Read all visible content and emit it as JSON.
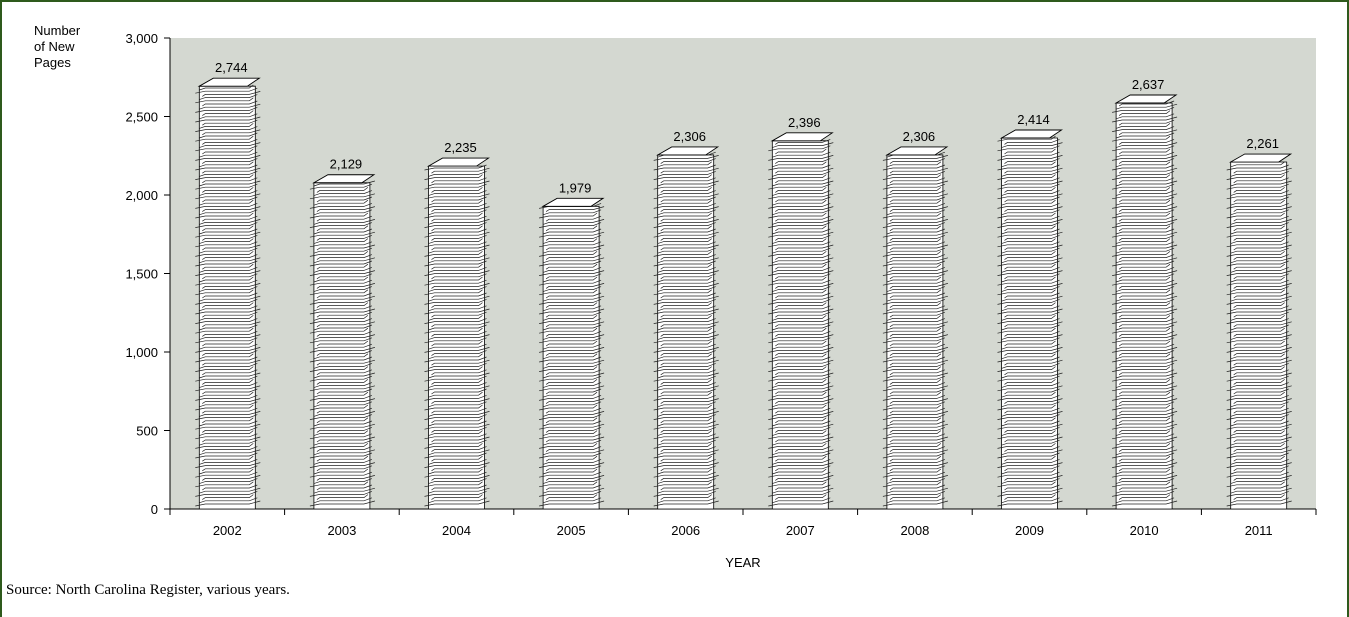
{
  "chart_data": {
    "type": "bar",
    "categories": [
      "2002",
      "2003",
      "2004",
      "2005",
      "2006",
      "2007",
      "2008",
      "2009",
      "2010",
      "2011"
    ],
    "values": [
      2744,
      2129,
      2235,
      1979,
      2306,
      2396,
      2306,
      2414,
      2637,
      2261
    ],
    "value_labels": [
      "2,744",
      "2,129",
      "2,235",
      "1,979",
      "2,306",
      "2,396",
      "2,306",
      "2,414",
      "2,637",
      "2,261"
    ],
    "ylabel": [
      "Number",
      "of New",
      "Pages"
    ],
    "xlabel": "YEAR",
    "ylim": [
      0,
      3000
    ],
    "yticks": [
      0,
      500,
      1000,
      1500,
      2000,
      2500,
      3000
    ],
    "ytick_labels": [
      "0",
      "500",
      "1,000",
      "1,500",
      "2,000",
      "2,500",
      "3,000"
    ],
    "bar_style": "stacked paper pages",
    "plot_background": "#d4d8d1",
    "frame_color": "#2e5a1c",
    "grid": false
  },
  "source_note": "Source: North Carolina Register, various years."
}
